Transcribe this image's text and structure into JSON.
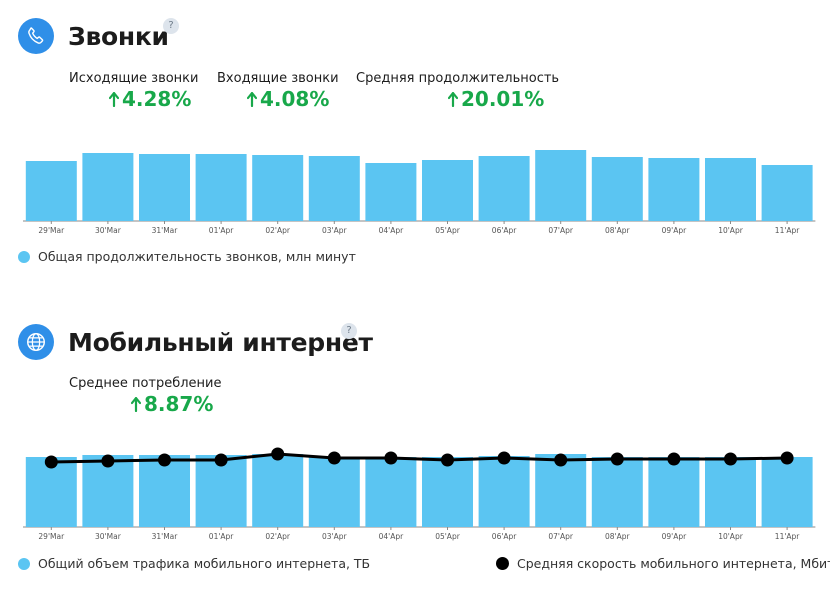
{
  "calls": {
    "title": "Звонки",
    "help": "?",
    "metrics": [
      {
        "label": "Исходящие звонки",
        "value": "4.28%"
      },
      {
        "label": "Входящие звонки",
        "value": "4.08%"
      },
      {
        "label": "Средняя продолжительность",
        "value": "20.01%"
      }
    ],
    "legend": "Общая продолжительность звонков, млн минут"
  },
  "internet": {
    "title": "Мобильный интернет",
    "help": "?",
    "metrics": [
      {
        "label": "Среднее потребление",
        "value": "8.87%"
      }
    ],
    "legend_bars": "Общий объем трафика мобильного интернета, ТБ",
    "legend_line": "Средняя скорость мобильного интернета, Мбит/с"
  },
  "colors": {
    "bar": "#5bc5f2",
    "line": "#000000",
    "accent": "#2f8fe8",
    "positive": "#18a84a"
  },
  "chart_data": [
    {
      "type": "bar",
      "categories": [
        "29'Mar",
        "30'Mar",
        "31'Mar",
        "01'Apr",
        "02'Apr",
        "03'Apr",
        "04'Apr",
        "05'Apr",
        "06'Apr",
        "07'Apr",
        "08'Apr",
        "09'Apr",
        "10'Apr",
        "11'Apr"
      ],
      "series": [
        {
          "name": "Общая продолжительность звонков, млн минут",
          "values": [
            60,
            68,
            67,
            67,
            66,
            65,
            58,
            61,
            65,
            71,
            64,
            63,
            63,
            56
          ]
        }
      ],
      "ylim": [
        0,
        100
      ],
      "grid": false,
      "legend": "bottom-left"
    },
    {
      "type": "bar",
      "categories": [
        "29'Mar",
        "30'Mar",
        "31'Mar",
        "01'Apr",
        "02'Apr",
        "03'Apr",
        "04'Apr",
        "05'Apr",
        "06'Apr",
        "07'Apr",
        "08'Apr",
        "09'Apr",
        "10'Apr",
        "11'Apr"
      ],
      "series": [
        {
          "name": "Общий объем трафика мобильного интернета, ТБ",
          "type": "bar",
          "values": [
            70,
            72,
            72,
            72,
            73,
            70,
            70,
            70,
            71,
            73,
            70,
            70,
            70,
            70
          ]
        },
        {
          "name": "Средняя скорость мобильного интернета, Мбит/с",
          "type": "line",
          "values": [
            65,
            66,
            67,
            67,
            73,
            69,
            69,
            67,
            69,
            67,
            68,
            68,
            68,
            69
          ]
        }
      ],
      "ylim": [
        0,
        100
      ],
      "grid": false,
      "legend": "bottom"
    }
  ]
}
